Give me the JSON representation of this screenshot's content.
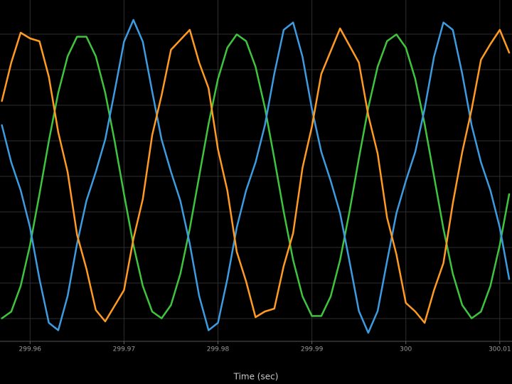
{
  "chart_data": {
    "type": "line",
    "xlabel": "Time (sec)",
    "xlim": [
      299.9568,
      300.0113
    ],
    "xticks": [
      299.96,
      299.97,
      299.98,
      299.99,
      300,
      300.01
    ],
    "ylim": [
      -1.16,
      1.24
    ],
    "yticks": [
      -1,
      -0.75,
      -0.5,
      -0.25,
      0,
      0.25,
      0.5,
      0.75,
      1
    ],
    "grid": true,
    "x": [
      299.957,
      299.958,
      299.959,
      299.96,
      299.961,
      299.962,
      299.963,
      299.964,
      299.965,
      299.966,
      299.967,
      299.968,
      299.969,
      299.97,
      299.971,
      299.972,
      299.973,
      299.974,
      299.975,
      299.976,
      299.977,
      299.978,
      299.979,
      299.98,
      299.981,
      299.982,
      299.983,
      299.984,
      299.985,
      299.986,
      299.987,
      299.988,
      299.989,
      299.99,
      299.991,
      299.992,
      299.993,
      299.994,
      299.995,
      299.996,
      299.997,
      299.998,
      299.999,
      300,
      300.001,
      300.002,
      300.003,
      300.004,
      300.005,
      300.006,
      300.007,
      300.008,
      300.009,
      300.01,
      300.011
    ],
    "series": [
      {
        "color": "#3ec43e",
        "values": [
          -0.998,
          -0.951,
          -0.771,
          -0.482,
          -0.125,
          0.249,
          0.588,
          0.844,
          0.982,
          0.982,
          0.844,
          0.588,
          0.249,
          -0.125,
          -0.482,
          -0.771,
          -0.951,
          -0.998,
          -0.905,
          -0.685,
          -0.368,
          0,
          0.368,
          0.685,
          0.905,
          0.998,
          0.951,
          0.771,
          0.482,
          0.125,
          -0.249,
          -0.588,
          -0.844,
          -0.982,
          -0.982,
          -0.844,
          -0.588,
          -0.249,
          0.125,
          0.482,
          0.771,
          0.951,
          0.998,
          0.905,
          0.685,
          0.368,
          0,
          -0.368,
          -0.685,
          -0.905,
          -0.998,
          -0.951,
          -0.771,
          -0.482,
          -0.125
        ]
      },
      {
        "color": "#3d9be0",
        "values": [
          0.36,
          0.098,
          -0.098,
          -0.36,
          -0.722,
          -1.03,
          -1.082,
          -0.841,
          -0.474,
          -0.172,
          0.032,
          0.259,
          0.597,
          0.947,
          1.1,
          0.947,
          0.597,
          0.259,
          0.032,
          -0.172,
          -0.474,
          -0.841,
          -1.082,
          -1.03,
          -0.722,
          -0.36,
          -0.098,
          0.098,
          0.36,
          0.722,
          1.03,
          1.082,
          0.841,
          0.474,
          0.172,
          -0.032,
          -0.259,
          -0.597,
          -0.947,
          -1.1,
          -0.947,
          -0.597,
          -0.259,
          -0.032,
          0.172,
          0.474,
          0.841,
          1.082,
          1.03,
          0.722,
          0.36,
          0.098,
          -0.098,
          -0.36,
          -0.722
        ]
      },
      {
        "color": "#ff9a22",
        "values": [
          0.53,
          0.8,
          1.01,
          0.97,
          0.95,
          0.7,
          0.31,
          0.03,
          -0.41,
          -0.65,
          -0.94,
          -1.02,
          -0.91,
          -0.8,
          -0.44,
          -0.16,
          0.29,
          0.57,
          0.89,
          0.96,
          1.03,
          0.8,
          0.62,
          0.19,
          -0.1,
          -0.53,
          -0.74,
          -0.99,
          -0.95,
          -0.93,
          -0.63,
          -0.4,
          0.06,
          0.35,
          0.72,
          0.88,
          1.04,
          0.92,
          0.8,
          0.43,
          0.16,
          -0.29,
          -0.55,
          -0.89,
          -0.95,
          -1.03,
          -0.8,
          -0.61,
          -0.19,
          0.17,
          0.47,
          0.82,
          0.93,
          1.03,
          0.87
        ]
      }
    ]
  }
}
